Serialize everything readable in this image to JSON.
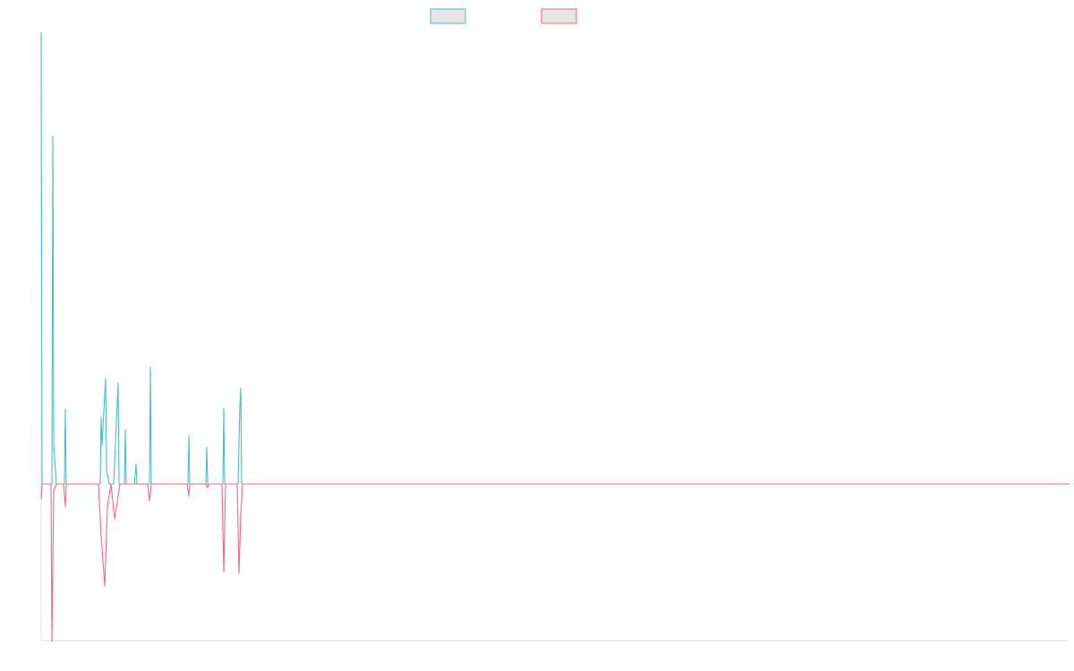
{
  "colors": {
    "series_a": "#4bc0c0",
    "series_b": "#ff6384",
    "legend_fill": "#e6e6e6",
    "axis": "#e0e0e0",
    "background": "#ffffff"
  },
  "chart_data": {
    "type": "line",
    "title": "",
    "xlabel": "",
    "ylabel": "",
    "grid": false,
    "legend_position": "top-center",
    "x": [
      0,
      1,
      2,
      3,
      4,
      5,
      6,
      7,
      8,
      9,
      10,
      11,
      12,
      13,
      14,
      15,
      16,
      17,
      18,
      19,
      20,
      21,
      22,
      23,
      24,
      25,
      26,
      27,
      28,
      29,
      30,
      31,
      32,
      33,
      34,
      35,
      36,
      37,
      38,
      39,
      40,
      41,
      42,
      43,
      44,
      45,
      46,
      47,
      48,
      49,
      50,
      51,
      52,
      53,
      54,
      55,
      56,
      57,
      58,
      59,
      60,
      61,
      62,
      63,
      64,
      65,
      66,
      67,
      68,
      69,
      70,
      71,
      72,
      73,
      74,
      75,
      76,
      77,
      78,
      79,
      80,
      81,
      82,
      83,
      84,
      85,
      86,
      87,
      88,
      89,
      90,
      91,
      92,
      93,
      94,
      95,
      96,
      97,
      98,
      99,
      100,
      101,
      102,
      103,
      104,
      105,
      106,
      107,
      108,
      109,
      110,
      111,
      112,
      113,
      114,
      115,
      116,
      117,
      118,
      119,
      120,
      121,
      122,
      123,
      124,
      125,
      126,
      127,
      128,
      129,
      130,
      131,
      132,
      133,
      134,
      135,
      136,
      137,
      138,
      139,
      140,
      141,
      142,
      143,
      144,
      145,
      146,
      147,
      148,
      149,
      150,
      151,
      152,
      153,
      154,
      155,
      156,
      157,
      158,
      159,
      160,
      161,
      162,
      163,
      164,
      165,
      166,
      167,
      168,
      169,
      170,
      171,
      172,
      173,
      174,
      175,
      176,
      177,
      178,
      179,
      180,
      181,
      182,
      183,
      184,
      185,
      186,
      187,
      188,
      189,
      190,
      191,
      192,
      193,
      194,
      195,
      196,
      197,
      198,
      199,
      200,
      201,
      202,
      203,
      204,
      205,
      206,
      207,
      208,
      209,
      210,
      211,
      212,
      213,
      214,
      215,
      216,
      217,
      218,
      219,
      220,
      221,
      222,
      223,
      224,
      225,
      226,
      227,
      228,
      229,
      230,
      231,
      232,
      233,
      234,
      235,
      236,
      237,
      238,
      239,
      240,
      241,
      242,
      243,
      244,
      245,
      246,
      247,
      248,
      249,
      250,
      251,
      252,
      253,
      254,
      255,
      256,
      257,
      258,
      259,
      260,
      261,
      262,
      263,
      264,
      265,
      266,
      267,
      268,
      269,
      270,
      271,
      272,
      273,
      274,
      275,
      276,
      277,
      278,
      279,
      280,
      281,
      282,
      283,
      284,
      285,
      286,
      287,
      288,
      289,
      290,
      291,
      292,
      293,
      294,
      295,
      296,
      297,
      298,
      299,
      300,
      301,
      302,
      303,
      304,
      305,
      306,
      307,
      308,
      309,
      310,
      311,
      312,
      313,
      314,
      315,
      316,
      317,
      318,
      319,
      320,
      321,
      322,
      323,
      324,
      325,
      326,
      327,
      328,
      329,
      330,
      331,
      332,
      333,
      334,
      335,
      336,
      337,
      338,
      339,
      340,
      341,
      342,
      343,
      344,
      345,
      346,
      347,
      348,
      349,
      350,
      351,
      352,
      353,
      354,
      355,
      356,
      357,
      358,
      359,
      360,
      361,
      362,
      363,
      364,
      365,
      366,
      367,
      368,
      369,
      370,
      371,
      372,
      373,
      374,
      375,
      376,
      377,
      378,
      379,
      380,
      381,
      382,
      383,
      384,
      385,
      386,
      387,
      388,
      389,
      390,
      391,
      392,
      393,
      394,
      395,
      396,
      397,
      398,
      399,
      400,
      401,
      402,
      403,
      404,
      405,
      406,
      407,
      408,
      409,
      410,
      411,
      412,
      413,
      414,
      415,
      416,
      417,
      418,
      419,
      420,
      421,
      422,
      423,
      424,
      425,
      426,
      427,
      428,
      429,
      430,
      431,
      432,
      433,
      434,
      435,
      436,
      437,
      438,
      439,
      440,
      441,
      442,
      443,
      444,
      445,
      446,
      447,
      448,
      449,
      450,
      451,
      452,
      453,
      454,
      455,
      456,
      457,
      458,
      459,
      460,
      461,
      462,
      463,
      464,
      465,
      466,
      467,
      468,
      469,
      470,
      471,
      472,
      473,
      474,
      475,
      476,
      477,
      478,
      479,
      480,
      481,
      482,
      483,
      484,
      485,
      486,
      487,
      488,
      489,
      490,
      491,
      492,
      493,
      494,
      495,
      496,
      497,
      498,
      499,
      500,
      501,
      502,
      503,
      504,
      505,
      506,
      507,
      508,
      509,
      510,
      511,
      512,
      513,
      514,
      515,
      516,
      517,
      518,
      519,
      520,
      521,
      522,
      523,
      524,
      525,
      526,
      527,
      528,
      529,
      530,
      531,
      532,
      533,
      534,
      535,
      536,
      537,
      538,
      539,
      540,
      541,
      542,
      543,
      544,
      545,
      546,
      547,
      548,
      549,
      550,
      551,
      552,
      553,
      554,
      555,
      556,
      557,
      558,
      559,
      560,
      561,
      562,
      563,
      564,
      565,
      566,
      567,
      568,
      569,
      570,
      571,
      572,
      573,
      574,
      575,
      576,
      577,
      578,
      579,
      580,
      581,
      582,
      583,
      584,
      585,
      586,
      587,
      588,
      589,
      590,
      591,
      592,
      593,
      594,
      595,
      596,
      597,
      598,
      599,
      600,
      601,
      602,
      603,
      604,
      605,
      606,
      607,
      608,
      609,
      610,
      611,
      612,
      613,
      614,
      615,
      616,
      617,
      618,
      619,
      620,
      621,
      622,
      623,
      624,
      625,
      626,
      627,
      628,
      629,
      630,
      631,
      632,
      633,
      634,
      635,
      636,
      637,
      638,
      639,
      640,
      641,
      642,
      643,
      644,
      645,
      646,
      647,
      648,
      649,
      650,
      651,
      652,
      653,
      654,
      655,
      656,
      657,
      658,
      659,
      660,
      661,
      662,
      663,
      664,
      665,
      666,
      667,
      668,
      669,
      670,
      671,
      672,
      673,
      674,
      675,
      676,
      677,
      678,
      679,
      680,
      681,
      682,
      683,
      684,
      685,
      686,
      687,
      688,
      689,
      690,
      691,
      692,
      693,
      694,
      695,
      696,
      697,
      698,
      699,
      700,
      701,
      702,
      703,
      704,
      705,
      706,
      707,
      708,
      709,
      710,
      711,
      712,
      713,
      714,
      715,
      716,
      717,
      718,
      719,
      720,
      721,
      722,
      723,
      724,
      725,
      726,
      727,
      728,
      729,
      730,
      731,
      732,
      733,
      734,
      735,
      736,
      737,
      738,
      739,
      740,
      741,
      742,
      743,
      744,
      745,
      746,
      747,
      748,
      749,
      750,
      751,
      752,
      753,
      754,
      755,
      756,
      757,
      758,
      759,
      760,
      761,
      762,
      763,
      764,
      765,
      766,
      767,
      768,
      769,
      770,
      771,
      772,
      773,
      774,
      775,
      776,
      777,
      778,
      779,
      780,
      781,
      782,
      783,
      784,
      785,
      786,
      787,
      788,
      789,
      790,
      791,
      792,
      793,
      794,
      795,
      796,
      797,
      798,
      799,
      800,
      801,
      802,
      803,
      804,
      805,
      806,
      807,
      808,
      809,
      810,
      811,
      812,
      813,
      814,
      815,
      816,
      817,
      818,
      819,
      820,
      821,
      822,
      823,
      824,
      825,
      826,
      827,
      828,
      829,
      830,
      831,
      832,
      833,
      834,
      835,
      836,
      837,
      838,
      839,
      840,
      841,
      842,
      843,
      844,
      845,
      846,
      847,
      848,
      849,
      850,
      851,
      852,
      853,
      854,
      855,
      856,
      857,
      858,
      859,
      860,
      861,
      862,
      863,
      864,
      865,
      866,
      867,
      868,
      869,
      870,
      871,
      872,
      873,
      874,
      875,
      876,
      877,
      878,
      879,
      880,
      881,
      882,
      883,
      884,
      885,
      886,
      887,
      888,
      889,
      890,
      891,
      892,
      893,
      894,
      895,
      896,
      897,
      898,
      899,
      900,
      901,
      902,
      903,
      904,
      905,
      906,
      907,
      908,
      909,
      910,
      911,
      912,
      913,
      914,
      915,
      916,
      917,
      918,
      919,
      920,
      921,
      922,
      923,
      924,
      925,
      926,
      927,
      928,
      929,
      930,
      931,
      932,
      933,
      934,
      935,
      936,
      937,
      938,
      939,
      940,
      941,
      942,
      943,
      944,
      945,
      946,
      947,
      948,
      949,
      950,
      951,
      952,
      953,
      954,
      955,
      956,
      957,
      958,
      959,
      960,
      961,
      962,
      963,
      964,
      965,
      966,
      967,
      968,
      969,
      970,
      971,
      972,
      973,
      974,
      975,
      976,
      977,
      978,
      979,
      980,
      981,
      982,
      983,
      984,
      985,
      986,
      987,
      988,
      989,
      990,
      991,
      992,
      993,
      994,
      995,
      996,
      997,
      998,
      999,
      1000,
      1001,
      1002,
      1003,
      1004,
      1005,
      1006,
      1007,
      1008,
      1009,
      1010,
      1011,
      1012,
      1013,
      1014,
      1015,
      1016,
      1017,
      1018,
      1019,
      1020,
      1021,
      1022,
      1023,
      1024,
      1025,
      1026,
      1027,
      1028,
      1029,
      1030,
      1031,
      1032,
      1033,
      1034,
      1035,
      1036,
      1037,
      1038,
      1039,
      1040,
      1041,
      1042,
      1043,
      1044,
      1045,
      1046,
      1047,
      1048,
      1049,
      1050,
      1051,
      1052,
      1053,
      1054,
      1055,
      1056,
      1057,
      1058,
      1059,
      1060,
      1061,
      1062,
      1063,
      1064,
      1065,
      1066,
      1067,
      1068,
      1069,
      1070,
      1071,
      1072,
      1073,
      1074,
      1075,
      1076,
      1077,
      1078,
      1079,
      1080,
      1081,
      1082,
      1083,
      1084,
      1085,
      1086,
      1087,
      1088,
      1089,
      1090,
      1091,
      1092,
      1093,
      1094,
      1095,
      1096,
      1097,
      1098,
      1099,
      1100,
      1101,
      1102,
      1103,
      1104,
      1105,
      1106,
      1107,
      1108,
      1109,
      1110,
      1111,
      1112,
      1113,
      1114,
      1115,
      1116,
      1117,
      1118,
      1119,
      1120,
      1121,
      1122,
      1123,
      1124,
      1125,
      1126,
      1127,
      1128,
      1129,
      1130,
      1131,
      1132,
      1133,
      1134,
      1135,
      1136,
      1137,
      1138,
      1139,
      1140,
      1141,
      1142,
      1143,
      1144,
      1145,
      1146,
      1147,
      1148,
      1149
    ],
    "xlim": [
      0,
      1149
    ],
    "ylim": [
      -175,
      505
    ],
    "series": [
      {
        "color": "#4bc0c0",
        "points": [
          [
            0,
            505
          ],
          [
            1,
            0
          ],
          [
            12,
            0
          ],
          [
            13,
            389
          ],
          [
            14,
            45
          ],
          [
            17,
            0
          ],
          [
            26,
            0
          ],
          [
            27,
            84
          ],
          [
            28,
            0
          ],
          [
            66,
            0
          ],
          [
            67,
            75
          ],
          [
            68,
            44
          ],
          [
            72,
            118
          ],
          [
            73,
            16
          ],
          [
            76,
            0
          ],
          [
            81,
            0
          ],
          [
            86,
            113
          ],
          [
            87,
            0
          ],
          [
            93,
            0
          ],
          [
            94,
            61
          ],
          [
            95,
            0
          ],
          [
            104,
            0
          ],
          [
            106,
            22
          ],
          [
            107,
            0
          ],
          [
            121,
            0
          ],
          [
            122,
            131
          ],
          [
            123,
            0
          ],
          [
            164,
            0
          ],
          [
            165,
            54
          ],
          [
            166,
            0
          ],
          [
            184,
            0
          ],
          [
            185,
            41
          ],
          [
            186,
            0
          ],
          [
            203,
            0
          ],
          [
            204,
            85
          ],
          [
            205,
            0
          ],
          [
            220,
            0
          ],
          [
            222,
            87
          ],
          [
            223,
            107
          ],
          [
            224,
            0
          ],
          [
            1149,
            0
          ]
        ]
      },
      {
        "color": "#ff6384",
        "points": [
          [
            0,
            -17
          ],
          [
            1,
            0
          ],
          [
            11,
            0
          ],
          [
            12,
            -176
          ],
          [
            14,
            -8
          ],
          [
            17,
            0
          ],
          [
            25,
            0
          ],
          [
            27,
            -25
          ],
          [
            28,
            0
          ],
          [
            64,
            0
          ],
          [
            67,
            -58
          ],
          [
            71,
            -114
          ],
          [
            74,
            -25
          ],
          [
            78,
            0
          ],
          [
            82,
            -39
          ],
          [
            85,
            -20
          ],
          [
            88,
            0
          ],
          [
            119,
            0
          ],
          [
            121,
            -19
          ],
          [
            123,
            0
          ],
          [
            163,
            0
          ],
          [
            165,
            -13
          ],
          [
            166,
            0
          ],
          [
            184,
            0
          ],
          [
            186,
            -4
          ],
          [
            187,
            0
          ],
          [
            202,
            0
          ],
          [
            204,
            -98
          ],
          [
            206,
            0
          ],
          [
            219,
            0
          ],
          [
            221,
            -100
          ],
          [
            223,
            -35
          ],
          [
            225,
            0
          ],
          [
            1149,
            0
          ]
        ]
      }
    ]
  }
}
